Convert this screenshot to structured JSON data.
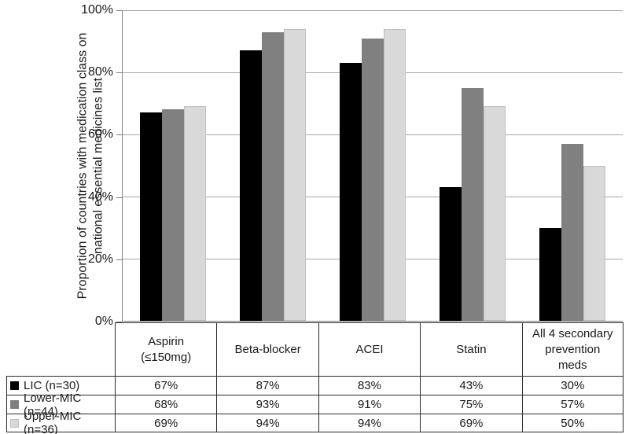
{
  "chart_data": {
    "type": "bar",
    "categories": [
      "Aspirin\n(≤150mg)",
      "Beta-blocker",
      "ACEI",
      "Statin",
      "All 4 secondary\nprevention\nmeds"
    ],
    "series": [
      {
        "name": "LIC (n=30)",
        "color": "#000000",
        "values": [
          67,
          87,
          83,
          43,
          30
        ]
      },
      {
        "name": "Lower-MIC (n=44)",
        "color": "#808080",
        "values": [
          68,
          93,
          91,
          75,
          57
        ]
      },
      {
        "name": "Upper-MIC (n=36)",
        "color": "#d9d9d9",
        "border_color": "#c0c0c0",
        "values": [
          69,
          94,
          94,
          69,
          50
        ]
      }
    ],
    "ylabel_line1": "Proportion of countries with medication class on",
    "ylabel_line2": "national essential medicines list",
    "y_ticks": [
      "100%",
      "80%",
      "60%",
      "40%",
      "20%",
      "0%"
    ],
    "ylim": [
      0,
      100
    ],
    "grid": "horizontal",
    "legend_position": "table-left",
    "gridline_color": "#a6a6a6",
    "axis_color": "#7f7f7f"
  },
  "table": {
    "col_headers": [
      "Aspirin\n(≤150mg)",
      "Beta-blocker",
      "ACEI",
      "Statin",
      "All 4 secondary\nprevention\nmeds"
    ],
    "rows": [
      {
        "label": "LIC (n=30)",
        "values": [
          "67%",
          "87%",
          "83%",
          "43%",
          "30%"
        ]
      },
      {
        "label": "Lower-MIC (n=44)",
        "values": [
          "68%",
          "93%",
          "91%",
          "75%",
          "57%"
        ]
      },
      {
        "label": "Upper-MIC (n=36)",
        "values": [
          "69%",
          "94%",
          "94%",
          "69%",
          "50%"
        ]
      }
    ]
  }
}
